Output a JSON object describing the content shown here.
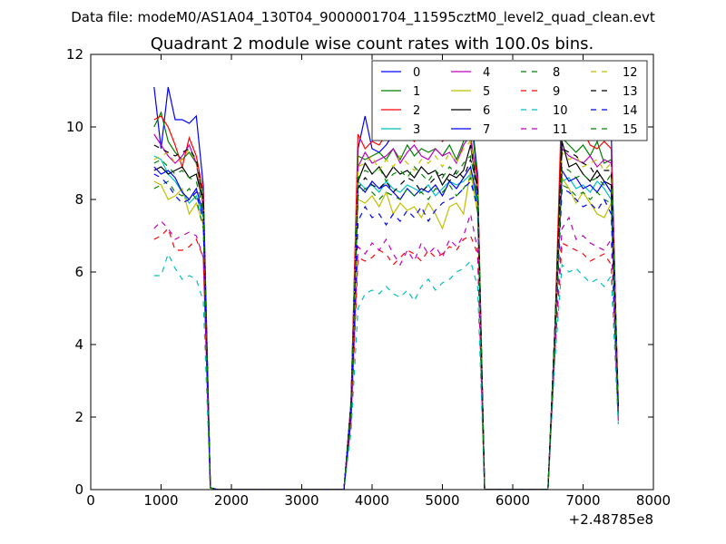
{
  "figure": {
    "suptitle": "Data file: modeM0/AS1A04_130T04_9000001704_11595cztM0_level2_quad_clean.evt"
  },
  "chart_data": {
    "type": "line",
    "title": "Quadrant 2 module wise count rates with 100.0s bins.",
    "xlabel": "",
    "ylabel": "",
    "x_offset_label": "+2.48785e8",
    "xlim": [
      0,
      8000
    ],
    "ylim": [
      0,
      12
    ],
    "x_ticks": [
      "0",
      "1000",
      "2000",
      "3000",
      "4000",
      "5000",
      "6000",
      "7000",
      "8000"
    ],
    "y_ticks": [
      "0",
      "2",
      "4",
      "6",
      "8",
      "10",
      "12"
    ],
    "legend_location": "top-right",
    "x": [
      900,
      1000,
      1100,
      1200,
      1300,
      1400,
      1500,
      1600,
      1700,
      1800,
      3600,
      3700,
      3800,
      3900,
      4000,
      4100,
      4200,
      4300,
      4400,
      4500,
      4600,
      4700,
      4800,
      4900,
      5000,
      5100,
      5200,
      5300,
      5400,
      5500,
      5600,
      6500,
      6600,
      6700,
      6800,
      6900,
      7000,
      7100,
      7200,
      7300,
      7400,
      7500
    ],
    "series": [
      {
        "name": "0",
        "color": "#0000ff",
        "dash": "solid",
        "values": [
          11.1,
          9.4,
          11.1,
          10.2,
          10.2,
          10.1,
          10.3,
          8.4,
          0.05,
          0,
          0,
          2.4,
          9.4,
          10.3,
          9.4,
          9.3,
          9.5,
          9.8,
          10.0,
          10.2,
          10.0,
          10.4,
          10.1,
          10.2,
          9.8,
          10.1,
          10.0,
          10.2,
          10.5,
          8.7,
          0,
          0,
          4.5,
          10.0,
          10.6,
          10.2,
          10.0,
          9.9,
          10.2,
          10.1,
          9.9,
          2.1
        ]
      },
      {
        "name": "1",
        "color": "#008000",
        "dash": "solid",
        "values": [
          10.0,
          10.4,
          9.6,
          9.3,
          9.1,
          9.3,
          9.0,
          8.0,
          0.05,
          0,
          0,
          2.3,
          9.2,
          9.1,
          9.2,
          9.3,
          9.1,
          9.4,
          9.1,
          9.5,
          9.2,
          9.4,
          9.3,
          9.4,
          9.2,
          9.5,
          9.1,
          9.6,
          10.4,
          8.5,
          0,
          0,
          4.4,
          9.7,
          9.5,
          9.3,
          9.5,
          9.2,
          9.6,
          9.0,
          9.1,
          2.3
        ]
      },
      {
        "name": "2",
        "color": "#ff0000",
        "dash": "solid",
        "values": [
          10.2,
          10.3,
          10.0,
          9.5,
          8.9,
          9.7,
          9.2,
          8.2,
          0.05,
          0,
          0,
          2.4,
          9.8,
          9.4,
          9.6,
          9.5,
          9.8,
          9.7,
          9.8,
          9.9,
          9.6,
          9.9,
          9.8,
          9.9,
          9.6,
          9.8,
          10.0,
          9.9,
          9.6,
          8.6,
          0,
          0,
          4.4,
          11.0,
          10.4,
          10.2,
          9.9,
          9.5,
          9.4,
          9.6,
          9.4,
          2.4
        ]
      },
      {
        "name": "3",
        "color": "#00bfbf",
        "dash": "solid",
        "values": [
          9.2,
          9.1,
          8.7,
          8.5,
          8.2,
          7.9,
          8.1,
          7.5,
          0.05,
          0,
          0,
          2.2,
          8.5,
          8.3,
          8.4,
          8.2,
          8.5,
          8.3,
          8.2,
          8.4,
          8.3,
          8.2,
          8.4,
          8.1,
          8.3,
          8.5,
          8.4,
          8.5,
          8.7,
          7.9,
          0,
          0,
          4.2,
          8.5,
          8.6,
          8.3,
          8.4,
          8.2,
          8.5,
          8.3,
          8.0,
          2.2
        ]
      },
      {
        "name": "4",
        "color": "#bf00bf",
        "dash": "solid",
        "values": [
          9.8,
          9.5,
          9.2,
          9.0,
          9.2,
          9.5,
          9.0,
          7.8,
          0.05,
          0,
          0,
          2.3,
          8.9,
          9.3,
          9.0,
          9.1,
          9.2,
          9.4,
          9.0,
          9.3,
          9.5,
          9.2,
          9.1,
          9.4,
          9.2,
          9.3,
          9.0,
          9.5,
          9.8,
          8.3,
          0,
          0,
          4.3,
          9.4,
          9.2,
          9.1,
          9.0,
          9.2,
          8.9,
          9.1,
          9.0,
          2.2
        ]
      },
      {
        "name": "5",
        "color": "#bfbf00",
        "dash": "solid",
        "values": [
          8.5,
          8.4,
          8.0,
          8.1,
          8.3,
          7.6,
          7.9,
          7.3,
          0.05,
          0,
          0,
          2.1,
          8.0,
          7.9,
          8.1,
          7.8,
          8.2,
          7.6,
          7.9,
          7.7,
          7.8,
          7.5,
          7.9,
          7.6,
          7.2,
          7.8,
          7.9,
          7.6,
          8.8,
          7.6,
          0,
          0,
          4.1,
          8.6,
          8.3,
          7.9,
          8.2,
          7.9,
          7.6,
          7.5,
          7.9,
          2.1
        ]
      },
      {
        "name": "6",
        "color": "#000000",
        "dash": "solid",
        "values": [
          8.8,
          8.9,
          8.7,
          8.8,
          8.9,
          8.6,
          8.7,
          7.9,
          0.05,
          0,
          0,
          2.3,
          8.5,
          9.0,
          8.7,
          8.9,
          8.6,
          8.9,
          8.7,
          8.8,
          8.6,
          8.9,
          8.7,
          8.8,
          8.4,
          8.7,
          8.6,
          8.8,
          9.5,
          8.2,
          0,
          0,
          4.4,
          9.6,
          8.9,
          9.0,
          8.7,
          8.5,
          8.8,
          8.5,
          8.4,
          2.3
        ]
      },
      {
        "name": "7",
        "color": "#0000ff",
        "dash": "solid",
        "values": [
          8.9,
          8.7,
          8.8,
          8.6,
          8.2,
          8.0,
          8.3,
          7.6,
          0.05,
          0,
          0,
          2.2,
          8.4,
          8.2,
          8.5,
          8.3,
          8.4,
          8.2,
          8.0,
          8.3,
          8.1,
          8.3,
          8.2,
          8.4,
          8.1,
          8.5,
          8.3,
          8.6,
          8.9,
          8.0,
          0,
          0,
          4.3,
          8.8,
          8.5,
          8.6,
          8.3,
          8.4,
          8.2,
          8.5,
          8.2,
          2.2
        ]
      },
      {
        "name": "8",
        "color": "#008000",
        "dash": "dash",
        "values": [
          8.3,
          8.4,
          8.5,
          8.2,
          8.1,
          8.3,
          8.0,
          7.2,
          0.05,
          0,
          0,
          2.0,
          8.1,
          8.3,
          8.2,
          8.0,
          8.2,
          8.1,
          8.0,
          8.3,
          8.1,
          8.2,
          8.0,
          8.3,
          8.2,
          8.4,
          8.1,
          8.3,
          8.6,
          7.7,
          0,
          0,
          4.0,
          8.4,
          8.3,
          8.1,
          8.2,
          8.0,
          8.2,
          8.0,
          7.9,
          2.0
        ]
      },
      {
        "name": "9",
        "color": "#ff0000",
        "dash": "dash",
        "values": [
          6.9,
          7.0,
          7.2,
          6.6,
          6.6,
          6.7,
          6.9,
          6.4,
          0.05,
          0,
          0,
          1.8,
          6.4,
          6.3,
          6.4,
          6.6,
          6.5,
          6.2,
          6.4,
          6.6,
          6.5,
          6.3,
          6.6,
          6.4,
          6.5,
          6.7,
          6.6,
          6.9,
          7.0,
          6.5,
          0,
          0,
          3.8,
          6.8,
          6.7,
          6.6,
          6.5,
          6.3,
          6.4,
          6.5,
          6.2,
          1.9
        ]
      },
      {
        "name": "10",
        "color": "#00bfbf",
        "dash": "dash",
        "values": [
          5.9,
          5.9,
          6.5,
          6.1,
          5.8,
          5.9,
          5.8,
          5.2,
          0.05,
          0,
          0,
          1.6,
          5.0,
          5.4,
          5.5,
          5.4,
          5.6,
          5.4,
          5.3,
          5.5,
          5.2,
          5.6,
          5.8,
          5.5,
          5.7,
          5.8,
          6.0,
          6.1,
          6.3,
          5.6,
          0,
          0,
          3.6,
          6.2,
          6.0,
          6.1,
          5.9,
          5.7,
          5.8,
          5.6,
          5.9,
          1.8
        ]
      },
      {
        "name": "11",
        "color": "#bf00bf",
        "dash": "dash",
        "values": [
          7.2,
          7.4,
          7.2,
          6.9,
          7.0,
          7.1,
          7.0,
          6.4,
          0.05,
          0,
          0,
          1.9,
          6.7,
          6.5,
          6.8,
          6.6,
          6.9,
          6.5,
          6.2,
          6.6,
          6.3,
          6.8,
          6.5,
          6.7,
          6.4,
          6.9,
          6.7,
          7.0,
          7.6,
          6.6,
          0,
          0,
          3.9,
          7.2,
          7.5,
          6.9,
          7.0,
          6.8,
          6.7,
          6.6,
          6.9,
          1.9
        ]
      },
      {
        "name": "12",
        "color": "#bfbf00",
        "dash": "dash",
        "values": [
          9.1,
          9.2,
          9.3,
          9.0,
          9.1,
          9.4,
          9.0,
          7.9,
          0.05,
          0,
          0,
          2.3,
          8.9,
          9.0,
          9.2,
          8.8,
          9.1,
          8.9,
          9.2,
          9.0,
          8.8,
          9.1,
          9.0,
          9.2,
          8.9,
          9.3,
          9.0,
          9.4,
          9.6,
          8.3,
          0,
          0,
          4.3,
          9.3,
          9.1,
          9.2,
          8.9,
          9.0,
          9.1,
          8.8,
          9.0,
          2.2
        ]
      },
      {
        "name": "13",
        "color": "#000000",
        "dash": "dash",
        "values": [
          9.5,
          9.4,
          9.3,
          9.2,
          9.3,
          9.4,
          9.1,
          8.0,
          0.05,
          0,
          0,
          2.4,
          8.3,
          8.6,
          8.4,
          8.3,
          8.5,
          8.2,
          8.4,
          8.6,
          8.5,
          8.2,
          8.4,
          8.6,
          8.7,
          8.5,
          8.8,
          8.6,
          9.1,
          8.4,
          0,
          0,
          4.4,
          9.4,
          9.3,
          9.2,
          9.0,
          8.9,
          8.6,
          8.8,
          8.8,
          2.3
        ]
      },
      {
        "name": "14",
        "color": "#0000ff",
        "dash": "dash",
        "values": [
          8.7,
          8.6,
          8.4,
          8.1,
          7.9,
          8.0,
          8.2,
          7.4,
          0.05,
          0,
          0,
          2.1,
          7.4,
          7.8,
          7.5,
          7.6,
          7.3,
          7.6,
          7.4,
          7.7,
          7.5,
          7.8,
          7.4,
          7.7,
          7.9,
          8.0,
          8.1,
          8.3,
          8.5,
          7.8,
          0,
          0,
          4.1,
          8.3,
          8.2,
          8.0,
          7.8,
          7.9,
          7.7,
          8.0,
          7.6,
          2.1
        ]
      },
      {
        "name": "15",
        "color": "#008000",
        "dash": "dash",
        "values": [
          9.0,
          9.1,
          8.9,
          8.7,
          8.8,
          8.6,
          8.5,
          7.7,
          0.05,
          0,
          0,
          2.2,
          8.6,
          8.8,
          8.7,
          8.9,
          8.5,
          8.7,
          8.8,
          8.6,
          8.9,
          8.7,
          8.5,
          8.8,
          8.6,
          8.9,
          8.7,
          9.0,
          9.2,
          8.1,
          0,
          0,
          4.2,
          8.9,
          8.8,
          8.6,
          8.7,
          8.5,
          8.6,
          8.4,
          8.7,
          2.1
        ]
      }
    ]
  }
}
